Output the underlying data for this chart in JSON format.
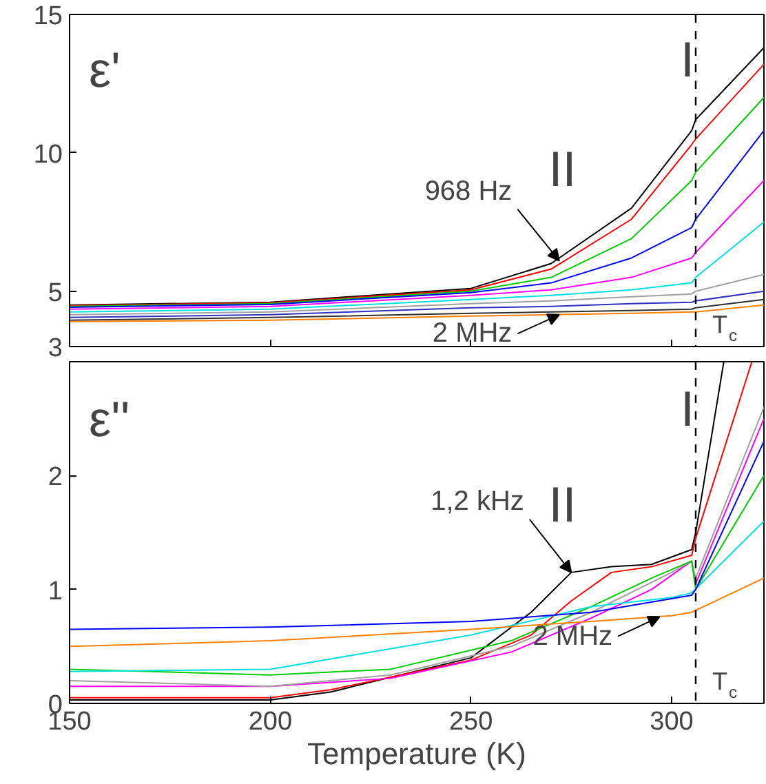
{
  "chart_data": [
    {
      "type": "line",
      "ylabel": "ε'",
      "xlim": [
        150,
        323
      ],
      "ylim": [
        3,
        15
      ],
      "xticks": [
        150,
        200,
        250,
        300
      ],
      "yticks": [
        3,
        5,
        10,
        15
      ],
      "tick_labels": "y",
      "grid": false,
      "annotations": [
        "I",
        "II",
        {
          "text": "968 Hz",
          "x": 272,
          "y": 6.1
        },
        {
          "text": "2 MHz",
          "x": 272,
          "y": 4.15
        }
      ],
      "ref_lines": [
        {
          "axis": "x",
          "value": 306,
          "label": "T$_{c}$",
          "line_style": "dashed",
          "color": "#000000"
        }
      ],
      "series": [
        {
          "color": "#000000",
          "x": [
            150,
            200,
            250,
            270,
            290,
            305,
            306,
            323
          ],
          "values": [
            4.5,
            4.6,
            5.1,
            6.0,
            8.0,
            10.8,
            11.2,
            13.8
          ]
        },
        {
          "color": "#ff0000",
          "x": [
            150,
            200,
            250,
            270,
            290,
            305,
            306,
            323
          ],
          "values": [
            4.48,
            4.58,
            5.05,
            5.8,
            7.6,
            10.3,
            10.5,
            13.2
          ]
        },
        {
          "color": "#00cc00",
          "x": [
            150,
            200,
            250,
            270,
            290,
            305,
            306,
            323
          ],
          "values": [
            4.45,
            4.55,
            5.0,
            5.5,
            6.9,
            9.0,
            9.3,
            12.0
          ]
        },
        {
          "color": "#0000ff",
          "x": [
            150,
            200,
            250,
            270,
            290,
            305,
            306,
            323
          ],
          "values": [
            4.42,
            4.52,
            4.95,
            5.3,
            6.2,
            7.3,
            7.6,
            10.8
          ]
        },
        {
          "color": "#ff00ff",
          "x": [
            150,
            200,
            250,
            270,
            290,
            305,
            306,
            323
          ],
          "values": [
            4.35,
            4.45,
            4.85,
            5.05,
            5.5,
            6.2,
            6.4,
            9.0
          ]
        },
        {
          "color": "#00e0e0",
          "x": [
            150,
            200,
            250,
            270,
            290,
            305,
            306,
            323
          ],
          "values": [
            4.25,
            4.35,
            4.7,
            4.85,
            5.05,
            5.3,
            5.5,
            7.5
          ]
        },
        {
          "color": "#a0a0a0",
          "x": [
            150,
            200,
            250,
            270,
            290,
            305,
            306,
            323
          ],
          "values": [
            4.15,
            4.25,
            4.55,
            4.65,
            4.8,
            4.9,
            5.0,
            5.6
          ]
        },
        {
          "color": "#3030c0",
          "x": [
            150,
            200,
            250,
            270,
            290,
            305,
            306,
            323
          ],
          "values": [
            4.05,
            4.15,
            4.4,
            4.45,
            4.55,
            4.6,
            4.65,
            5.0
          ]
        },
        {
          "color": "#303030",
          "x": [
            150,
            200,
            250,
            270,
            290,
            305,
            306,
            323
          ],
          "values": [
            3.95,
            4.05,
            4.2,
            4.25,
            4.3,
            4.35,
            4.4,
            4.7
          ]
        },
        {
          "color": "#ff8000",
          "x": [
            150,
            200,
            250,
            270,
            290,
            305,
            306,
            323
          ],
          "values": [
            3.9,
            3.95,
            4.1,
            4.15,
            4.2,
            4.25,
            4.25,
            4.5
          ]
        }
      ]
    },
    {
      "type": "line",
      "ylabel": "ε''",
      "xlabel": "Temperature (K)",
      "xlim": [
        150,
        323
      ],
      "ylim": [
        0,
        3
      ],
      "xticks": [
        150,
        200,
        250,
        300
      ],
      "yticks": [
        0,
        1,
        2
      ],
      "grid": false,
      "annotations": [
        "I",
        "II",
        {
          "text": "1,2 kHz",
          "x": 275,
          "y": 1.15
        },
        {
          "text": "2 MHz",
          "x": 297,
          "y": 0.76
        }
      ],
      "ref_lines": [
        {
          "axis": "x",
          "value": 306,
          "label": "T$_{c}$",
          "line_style": "dashed",
          "color": "#000000"
        }
      ],
      "series": [
        {
          "color": "#000000",
          "x": [
            150,
            200,
            215,
            250,
            265,
            275,
            285,
            295,
            305,
            306,
            313
          ],
          "values": [
            0.03,
            0.03,
            0.1,
            0.4,
            0.8,
            1.15,
            1.2,
            1.22,
            1.35,
            1.5,
            3.0
          ]
        },
        {
          "color": "#ff0000",
          "x": [
            150,
            200,
            215,
            250,
            265,
            275,
            285,
            295,
            305,
            306,
            320
          ],
          "values": [
            0.05,
            0.05,
            0.12,
            0.38,
            0.6,
            0.9,
            1.15,
            1.2,
            1.3,
            1.45,
            3.0
          ]
        },
        {
          "color": "#ff00ff",
          "x": [
            150,
            200,
            230,
            260,
            280,
            295,
            305,
            306,
            323
          ],
          "values": [
            0.15,
            0.15,
            0.22,
            0.45,
            0.75,
            1.0,
            1.25,
            1.05,
            2.5
          ]
        },
        {
          "color": "#a0a0a0",
          "x": [
            150,
            200,
            230,
            260,
            280,
            300,
            305,
            306,
            323
          ],
          "values": [
            0.2,
            0.15,
            0.25,
            0.5,
            0.8,
            1.15,
            1.25,
            1.1,
            2.6
          ]
        },
        {
          "color": "#00cc00",
          "x": [
            150,
            200,
            230,
            260,
            280,
            295,
            305,
            306,
            323
          ],
          "values": [
            0.3,
            0.25,
            0.3,
            0.55,
            0.85,
            1.1,
            1.25,
            1.0,
            2.0
          ]
        },
        {
          "color": "#00e0e0",
          "x": [
            150,
            200,
            250,
            280,
            300,
            305,
            323
          ],
          "values": [
            0.28,
            0.3,
            0.6,
            0.85,
            0.93,
            0.97,
            1.6
          ]
        },
        {
          "color": "#0000ff",
          "x": [
            150,
            200,
            250,
            280,
            305,
            306,
            323
          ],
          "values": [
            0.65,
            0.67,
            0.72,
            0.8,
            0.95,
            1.0,
            2.3
          ]
        },
        {
          "color": "#ff8000",
          "x": [
            150,
            200,
            250,
            280,
            300,
            305,
            323
          ],
          "values": [
            0.5,
            0.55,
            0.65,
            0.72,
            0.77,
            0.8,
            1.1
          ]
        }
      ]
    }
  ]
}
